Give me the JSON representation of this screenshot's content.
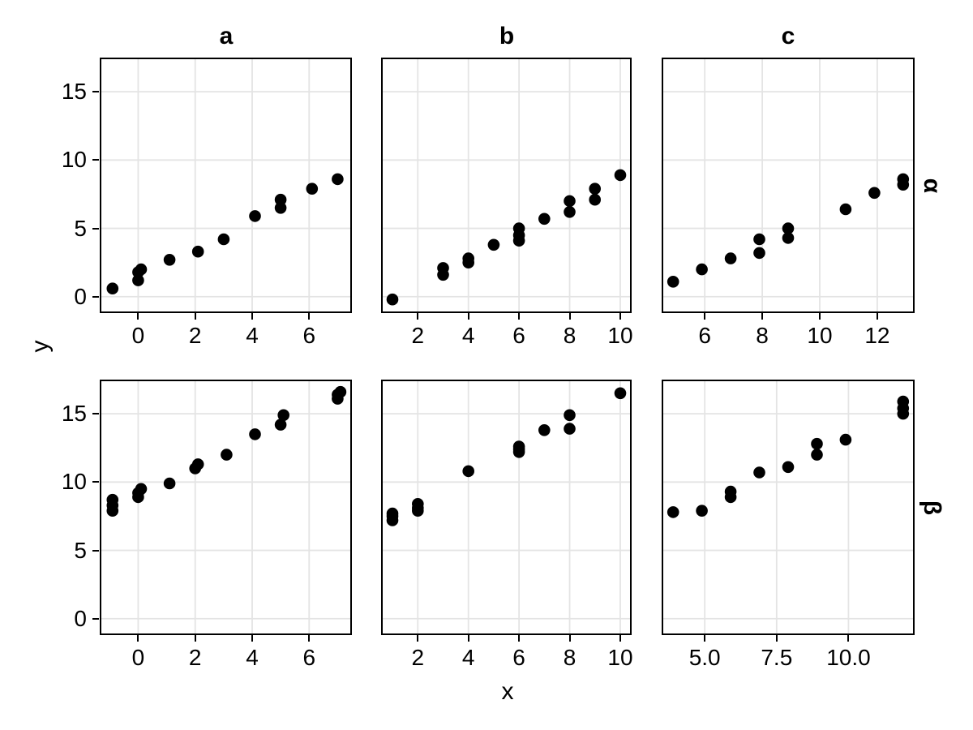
{
  "chart_data": {
    "type": "scatter",
    "title": "",
    "xlabel": "x",
    "ylabel": "y",
    "col_facets": [
      "a",
      "b",
      "c"
    ],
    "row_facets": [
      "α",
      "β"
    ],
    "legend": "none",
    "grid": "major-only",
    "ylim": [
      -1.2,
      17.5
    ],
    "y_ticks": [
      0,
      5,
      10,
      15
    ],
    "y_tick_labels": [
      "0",
      "5",
      "10",
      "15"
    ],
    "colors": {
      "point": "#000000",
      "panel_border": "#000000",
      "gridline": "#e4e4e4",
      "background": "#ffffff",
      "text": "#000000"
    },
    "panels": [
      {
        "row": "α",
        "col": "a",
        "xlim": [
          -1.35,
          7.5
        ],
        "x_ticks": [
          0,
          2,
          4,
          6
        ],
        "x_tick_labels": [
          "0",
          "2",
          "4",
          "6"
        ],
        "points": [
          [
            -0.9,
            0.6
          ],
          [
            0,
            1.2
          ],
          [
            0,
            1.8
          ],
          [
            0.1,
            2.0
          ],
          [
            1.1,
            2.7
          ],
          [
            2.1,
            3.3
          ],
          [
            3,
            4.2
          ],
          [
            4.1,
            5.9
          ],
          [
            5,
            6.5
          ],
          [
            5,
            7.1
          ],
          [
            6.1,
            7.9
          ],
          [
            7,
            8.6
          ]
        ]
      },
      {
        "row": "α",
        "col": "b",
        "xlim": [
          0.55,
          10.45
        ],
        "x_ticks": [
          2,
          4,
          6,
          8,
          10
        ],
        "x_tick_labels": [
          "2",
          "4",
          "6",
          "8",
          "10"
        ],
        "points": [
          [
            1,
            -0.2
          ],
          [
            3,
            1.6
          ],
          [
            3,
            2.1
          ],
          [
            4,
            2.5
          ],
          [
            4,
            2.8
          ],
          [
            5,
            3.8
          ],
          [
            6,
            4.1
          ],
          [
            6,
            4.5
          ],
          [
            6,
            5.0
          ],
          [
            7,
            5.7
          ],
          [
            8,
            6.2
          ],
          [
            8,
            7.0
          ],
          [
            9,
            7.1
          ],
          [
            9,
            7.9
          ],
          [
            10,
            8.9
          ]
        ]
      },
      {
        "row": "α",
        "col": "c",
        "xlim": [
          4.5,
          13.3
        ],
        "x_ticks": [
          6,
          8,
          10,
          12
        ],
        "x_tick_labels": [
          "6",
          "8",
          "10",
          "12"
        ],
        "points": [
          [
            4.9,
            1.1
          ],
          [
            5.9,
            2.0
          ],
          [
            6.9,
            2.8
          ],
          [
            7.9,
            3.2
          ],
          [
            7.9,
            4.2
          ],
          [
            8.9,
            4.3
          ],
          [
            8.9,
            5.0
          ],
          [
            10.9,
            6.4
          ],
          [
            11.9,
            7.6
          ],
          [
            12.9,
            8.2
          ],
          [
            12.9,
            8.6
          ]
        ]
      },
      {
        "row": "β",
        "col": "a",
        "xlim": [
          -1.35,
          7.5
        ],
        "x_ticks": [
          0,
          2,
          4,
          6
        ],
        "x_tick_labels": [
          "0",
          "2",
          "4",
          "6"
        ],
        "points": [
          [
            -0.9,
            7.9
          ],
          [
            -0.9,
            8.3
          ],
          [
            -0.9,
            8.7
          ],
          [
            0,
            8.9
          ],
          [
            0,
            9.2
          ],
          [
            0.1,
            9.5
          ],
          [
            1.1,
            9.9
          ],
          [
            2,
            11.0
          ],
          [
            2.1,
            11.3
          ],
          [
            3.1,
            12.0
          ],
          [
            4.1,
            13.5
          ],
          [
            5,
            14.2
          ],
          [
            5.1,
            14.9
          ],
          [
            7,
            16.1
          ],
          [
            7,
            16.4
          ],
          [
            7.1,
            16.6
          ]
        ]
      },
      {
        "row": "β",
        "col": "b",
        "xlim": [
          0.55,
          10.45
        ],
        "x_ticks": [
          2,
          4,
          6,
          8,
          10
        ],
        "x_tick_labels": [
          "2",
          "4",
          "6",
          "8",
          "10"
        ],
        "points": [
          [
            1,
            7.2
          ],
          [
            1,
            7.5
          ],
          [
            1,
            7.7
          ],
          [
            2,
            7.9
          ],
          [
            2,
            8.1
          ],
          [
            2,
            8.4
          ],
          [
            4,
            10.8
          ],
          [
            6,
            12.2
          ],
          [
            6,
            12.4
          ],
          [
            6,
            12.6
          ],
          [
            7,
            13.8
          ],
          [
            8,
            13.9
          ],
          [
            8,
            14.9
          ],
          [
            10,
            16.5
          ]
        ]
      },
      {
        "row": "β",
        "col": "c",
        "xlim": [
          3.5,
          12.3
        ],
        "x_ticks": [
          5,
          7.5,
          10
        ],
        "x_tick_labels": [
          "5.0",
          "7.5",
          "10.0"
        ],
        "points": [
          [
            3.9,
            7.8
          ],
          [
            4.9,
            7.9
          ],
          [
            5.9,
            8.9
          ],
          [
            5.9,
            9.3
          ],
          [
            6.9,
            10.7
          ],
          [
            7.9,
            11.1
          ],
          [
            8.9,
            12.0
          ],
          [
            8.9,
            12.8
          ],
          [
            9.9,
            13.1
          ],
          [
            11.9,
            15.0
          ],
          [
            11.9,
            15.4
          ],
          [
            11.9,
            15.9
          ]
        ]
      }
    ]
  }
}
